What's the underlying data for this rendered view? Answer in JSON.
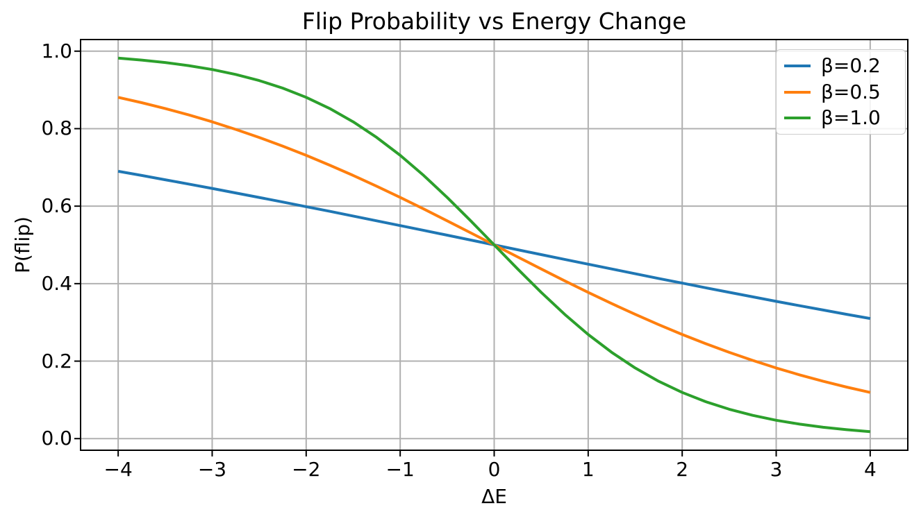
{
  "chart_data": {
    "type": "line",
    "title": "Flip Probability vs Energy Change",
    "xlabel": "ΔE",
    "ylabel": "P(flip)",
    "xlim": [
      -4.4,
      4.4
    ],
    "ylim": [
      -0.03,
      1.03
    ],
    "grid": true,
    "grid_color": "#b0b0b0",
    "frame_color": "#000000",
    "background_color": "#ffffff",
    "legend_position": "upper right",
    "x_ticks": [
      -4,
      -3,
      -2,
      -1,
      0,
      1,
      2,
      3,
      4
    ],
    "x_tick_labels": [
      "−4",
      "−3",
      "−2",
      "−1",
      "0",
      "1",
      "2",
      "3",
      "4"
    ],
    "y_ticks": [
      0.0,
      0.2,
      0.4,
      0.6,
      0.8,
      1.0
    ],
    "y_tick_labels": [
      "0.0",
      "0.2",
      "0.4",
      "0.6",
      "0.8",
      "1.0"
    ],
    "x": [
      -4,
      -3.75,
      -3.5,
      -3.25,
      -3,
      -2.75,
      -2.5,
      -2.25,
      -2,
      -1.75,
      -1.5,
      -1.25,
      -1,
      -0.75,
      -0.5,
      -0.25,
      0,
      0.25,
      0.5,
      0.75,
      1,
      1.25,
      1.5,
      1.75,
      2,
      2.25,
      2.5,
      2.75,
      3,
      3.25,
      3.5,
      3.75,
      4
    ],
    "series": [
      {
        "name": "β=0.2",
        "color": "#1f77b4",
        "values": [
          0.69,
          0.6792,
          0.6682,
          0.657,
          0.6457,
          0.6341,
          0.6225,
          0.6106,
          0.5987,
          0.5866,
          0.5744,
          0.5622,
          0.5498,
          0.5374,
          0.525,
          0.5125,
          0.5,
          0.4875,
          0.475,
          0.4626,
          0.4502,
          0.4378,
          0.4256,
          0.4134,
          0.4013,
          0.3894,
          0.3775,
          0.3659,
          0.3543,
          0.343,
          0.3318,
          0.3208,
          0.31
        ]
      },
      {
        "name": "β=0.5",
        "color": "#ff7f0e",
        "values": [
          0.8808,
          0.867,
          0.852,
          0.8355,
          0.8176,
          0.7982,
          0.7773,
          0.7549,
          0.7311,
          0.7058,
          0.6792,
          0.6514,
          0.6225,
          0.5927,
          0.5622,
          0.5312,
          0.5,
          0.4688,
          0.4378,
          0.4073,
          0.3775,
          0.3486,
          0.3208,
          0.2942,
          0.2689,
          0.2451,
          0.2227,
          0.2018,
          0.1824,
          0.1645,
          0.148,
          0.133,
          0.1192
        ]
      },
      {
        "name": "β=1.0",
        "color": "#2ca02c",
        "values": [
          0.982,
          0.977,
          0.9707,
          0.9626,
          0.9526,
          0.9399,
          0.9241,
          0.9047,
          0.8808,
          0.852,
          0.8176,
          0.7773,
          0.7311,
          0.6792,
          0.6225,
          0.5622,
          0.5,
          0.4378,
          0.3775,
          0.3208,
          0.2689,
          0.2227,
          0.1824,
          0.148,
          0.1192,
          0.0953,
          0.0759,
          0.0601,
          0.0474,
          0.0374,
          0.0293,
          0.023,
          0.018
        ]
      }
    ]
  }
}
